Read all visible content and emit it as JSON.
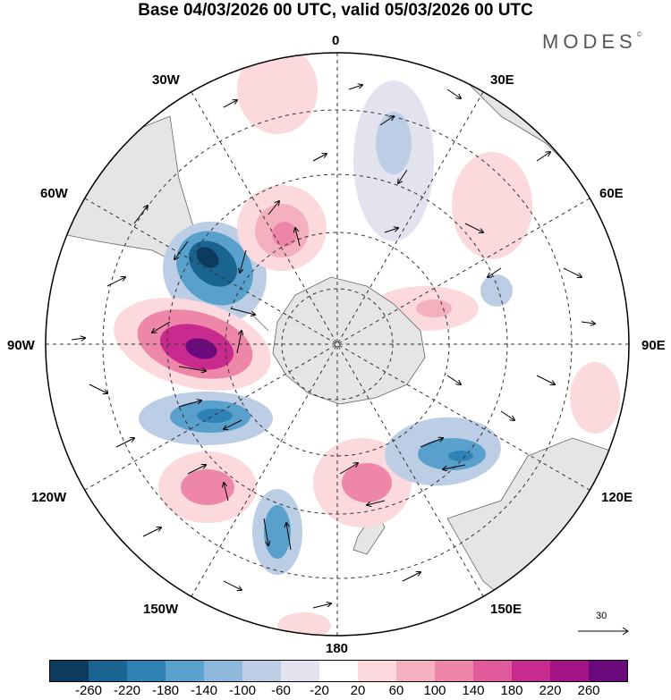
{
  "title": "Base 04/03/2026 00 UTC, valid 05/03/2026 00 UTC",
  "brand": "MODES",
  "brand_mark": "©",
  "longitude_labels": {
    "lon_0": "0",
    "lon_30e": "30E",
    "lon_60e": "60E",
    "lon_90e": "90E",
    "lon_120e": "120E",
    "lon_150e": "150E",
    "lon_180": "180",
    "lon_150w": "150W",
    "lon_120w": "120W",
    "lon_90w": "90W",
    "lon_60w": "60W",
    "lon_30w": "30W"
  },
  "reference_vector": {
    "label": "30"
  },
  "colorbar": {
    "colors": [
      "#0d3b5e",
      "#1a6491",
      "#2f82b6",
      "#5aa0cc",
      "#8db8dc",
      "#bccde6",
      "#e3e3f0",
      "#ffffff",
      "#fbd9dd",
      "#f5b0c0",
      "#ee86aa",
      "#e15b9c",
      "#c82a8e",
      "#a31486",
      "#6b0a7c"
    ],
    "ticks": [
      "-260",
      "-220",
      "-180",
      "-140",
      "-100",
      "-60",
      "-20",
      "20",
      "60",
      "100",
      "140",
      "180",
      "220",
      "260"
    ]
  },
  "chart_data": {
    "type": "polar stereographic map (southern hemisphere)",
    "variable_range": [
      -260,
      260
    ],
    "anomaly_centers": [
      {
        "name": "negative center near 60W-75W",
        "sign": "negative",
        "magnitude": 260
      },
      {
        "name": "positive center near 90W",
        "sign": "positive",
        "magnitude": 260
      },
      {
        "name": "negative center near 110W",
        "sign": "negative",
        "magnitude": 180
      },
      {
        "name": "positive center near 135W",
        "sign": "positive",
        "magnitude": 140
      },
      {
        "name": "negative center near 155W",
        "sign": "negative",
        "magnitude": 140
      },
      {
        "name": "positive center near 170E",
        "sign": "positive",
        "magnitude": 140
      },
      {
        "name": "negative center near 140E",
        "sign": "negative",
        "magnitude": 140
      },
      {
        "name": "positive center near 45W",
        "sign": "positive",
        "magnitude": 140
      },
      {
        "name": "negative center near 15E",
        "sign": "negative",
        "magnitude": 100
      },
      {
        "name": "positive center near 85E",
        "sign": "positive",
        "magnitude": 100
      }
    ]
  }
}
